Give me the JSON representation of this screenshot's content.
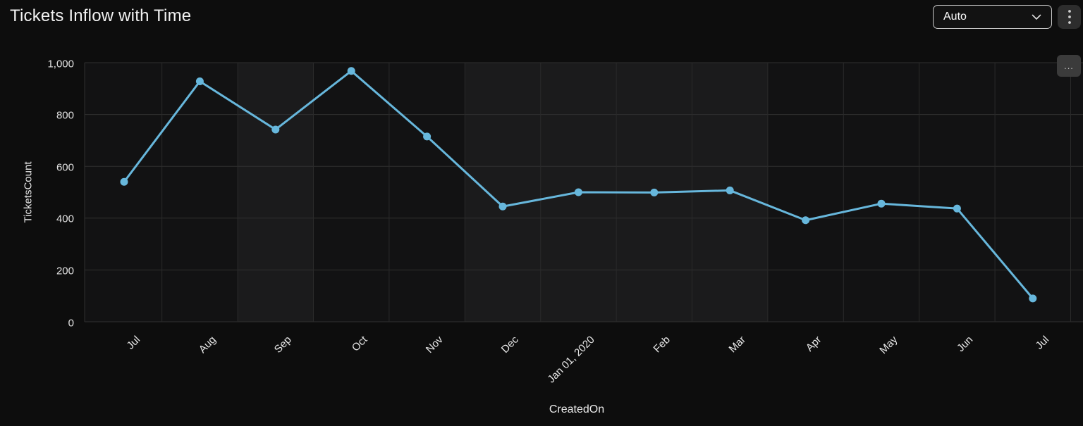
{
  "header": {
    "title": "Tickets Inflow with Time"
  },
  "controls": {
    "refresh_dropdown": {
      "value": "Auto"
    },
    "mini_options_label": "..."
  },
  "chart_data": {
    "type": "line",
    "title": "Tickets Inflow with Time",
    "xlabel": "CreatedOn",
    "ylabel": "TicketsCount",
    "categories": [
      "Jul",
      "Aug",
      "Sep",
      "Oct",
      "Nov",
      "Dec",
      "Jan 01, 2020",
      "Feb",
      "Mar",
      "Apr",
      "May",
      "Jun",
      "Jul"
    ],
    "series": [
      {
        "name": "TicketsCount",
        "values": [
          540,
          928,
          742,
          968,
          715,
          445,
          500,
          499,
          507,
          392,
          456,
          437,
          90
        ]
      }
    ],
    "ylim": [
      0,
      1000
    ],
    "yticks": [
      0,
      200,
      400,
      600,
      800,
      1000
    ],
    "ytick_labels": [
      "0",
      "200",
      "400",
      "600",
      "800",
      "1,000"
    ],
    "grid": true,
    "legend": false,
    "line_color": "#67b7dc",
    "shaded_band_indices": [
      2,
      5,
      6,
      7,
      8
    ],
    "x_labels_rotation_deg": -45
  }
}
